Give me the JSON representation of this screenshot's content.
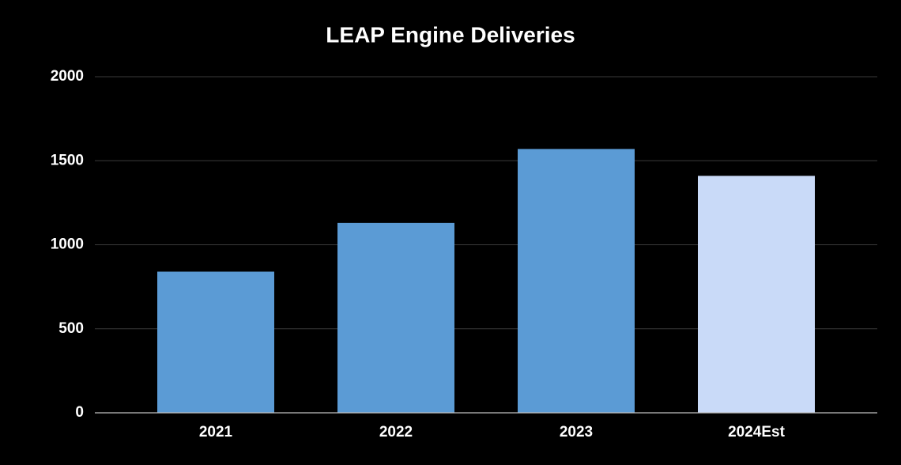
{
  "chart_data": {
    "type": "bar",
    "title": "LEAP Engine Deliveries",
    "categories": [
      "2021",
      "2022",
      "2023",
      "2024Est"
    ],
    "values": [
      840,
      1130,
      1570,
      1410
    ],
    "colors": [
      "#5b9bd5",
      "#5b9bd5",
      "#5b9bd5",
      "#c9daf8"
    ],
    "ylim": [
      0,
      2000
    ],
    "yticks": [
      0,
      500,
      1000,
      1500,
      2000
    ],
    "grid": true
  }
}
